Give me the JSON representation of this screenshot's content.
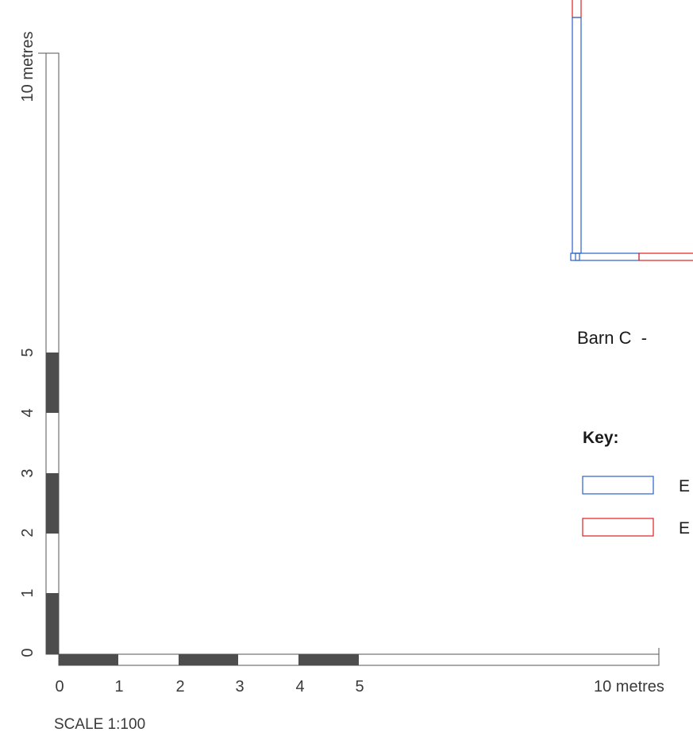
{
  "scale": {
    "title": "SCALE 1:100",
    "horizontal_labels": [
      "0",
      "1",
      "2",
      "3",
      "4",
      "5",
      "10 metres"
    ],
    "vertical_labels": [
      "0",
      "1",
      "2",
      "3",
      "4",
      "5",
      "10 metres"
    ]
  },
  "drawing": {
    "title": "Barn C  -  "
  },
  "key": {
    "heading": "Key:",
    "items": [
      {
        "label": "E",
        "color": "#2a62c9"
      },
      {
        "label": "E",
        "color": "#e02020"
      }
    ]
  },
  "colors": {
    "existing": "#2a62c9",
    "proposed": "#e02020",
    "scale_fill": "#4d4d4d",
    "scale_outline": "#555555"
  }
}
